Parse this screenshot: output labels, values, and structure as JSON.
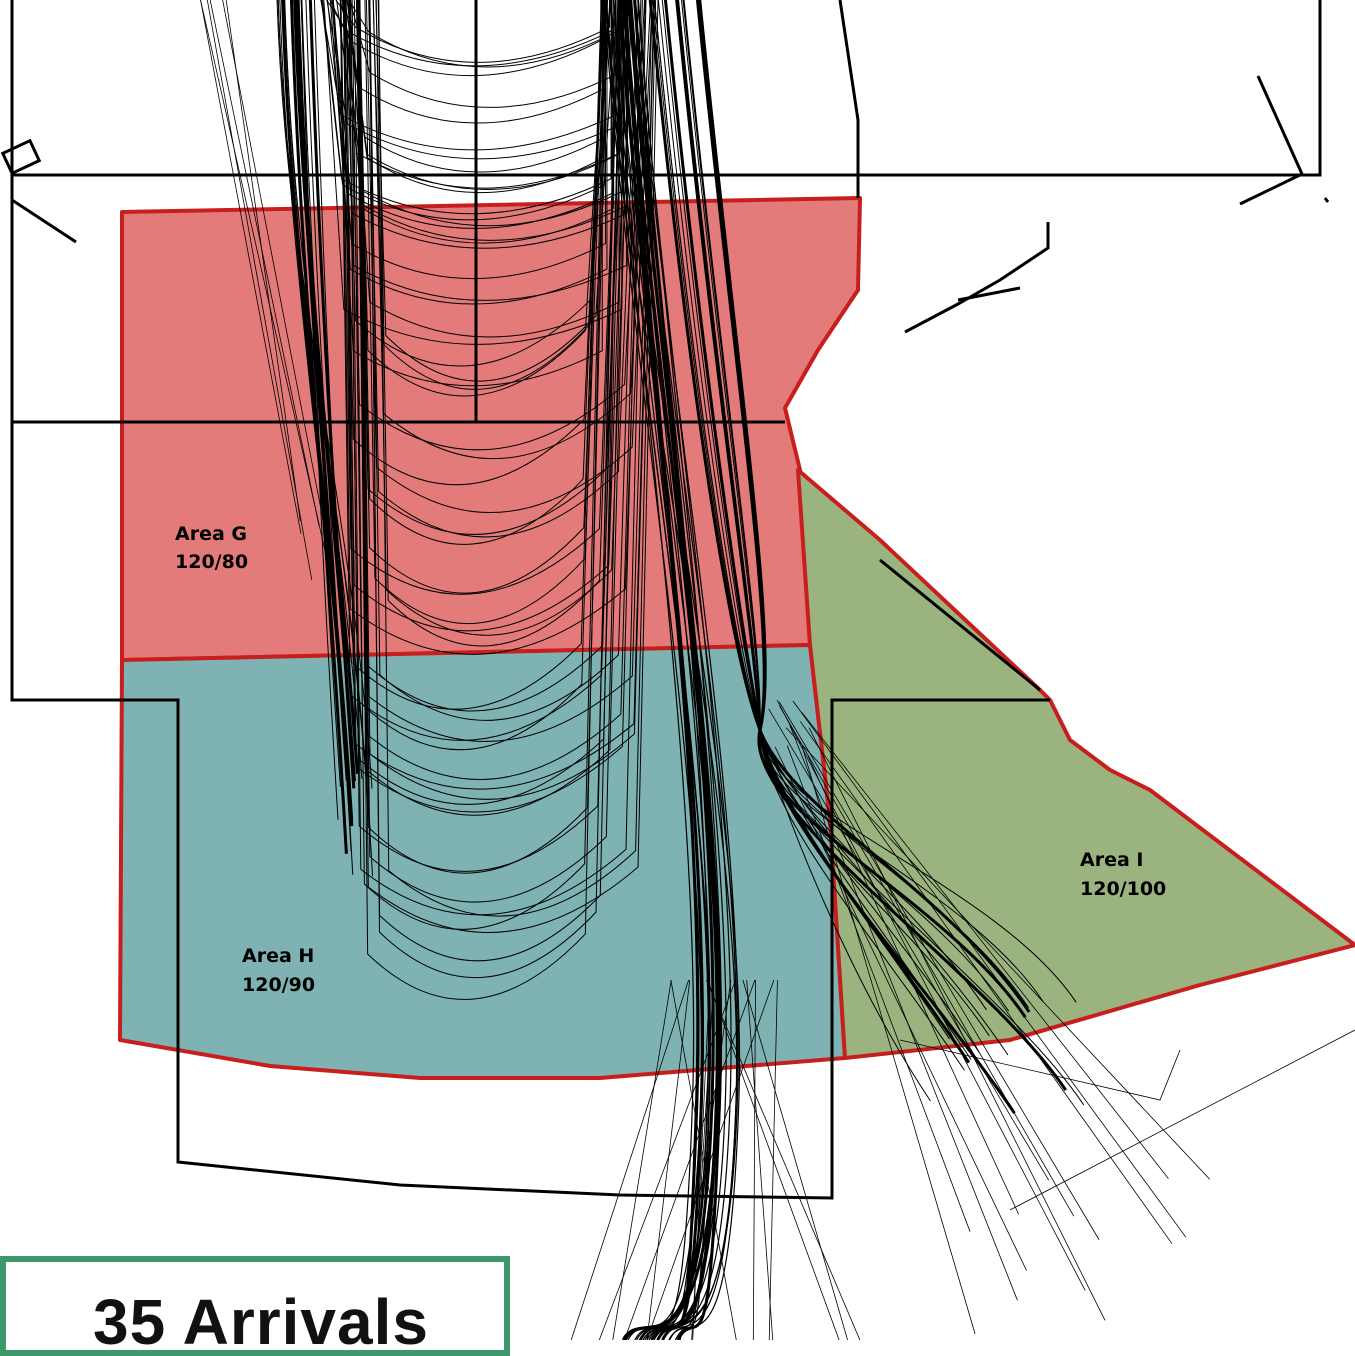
{
  "title": "35 Arrivals",
  "areas": [
    {
      "id": "G",
      "name": "Area G",
      "values": "120/80",
      "fill": "#e47b7b"
    },
    {
      "id": "H",
      "name": "Area H",
      "values": "120/90",
      "fill": "#7fb3b3"
    },
    {
      "id": "I",
      "name": "Area I",
      "values": "120/100",
      "fill": "#9bb47f"
    }
  ],
  "colors": {
    "area_border": "#c81e1e",
    "outline": "#000000",
    "title_border": "#3a9a6a"
  }
}
